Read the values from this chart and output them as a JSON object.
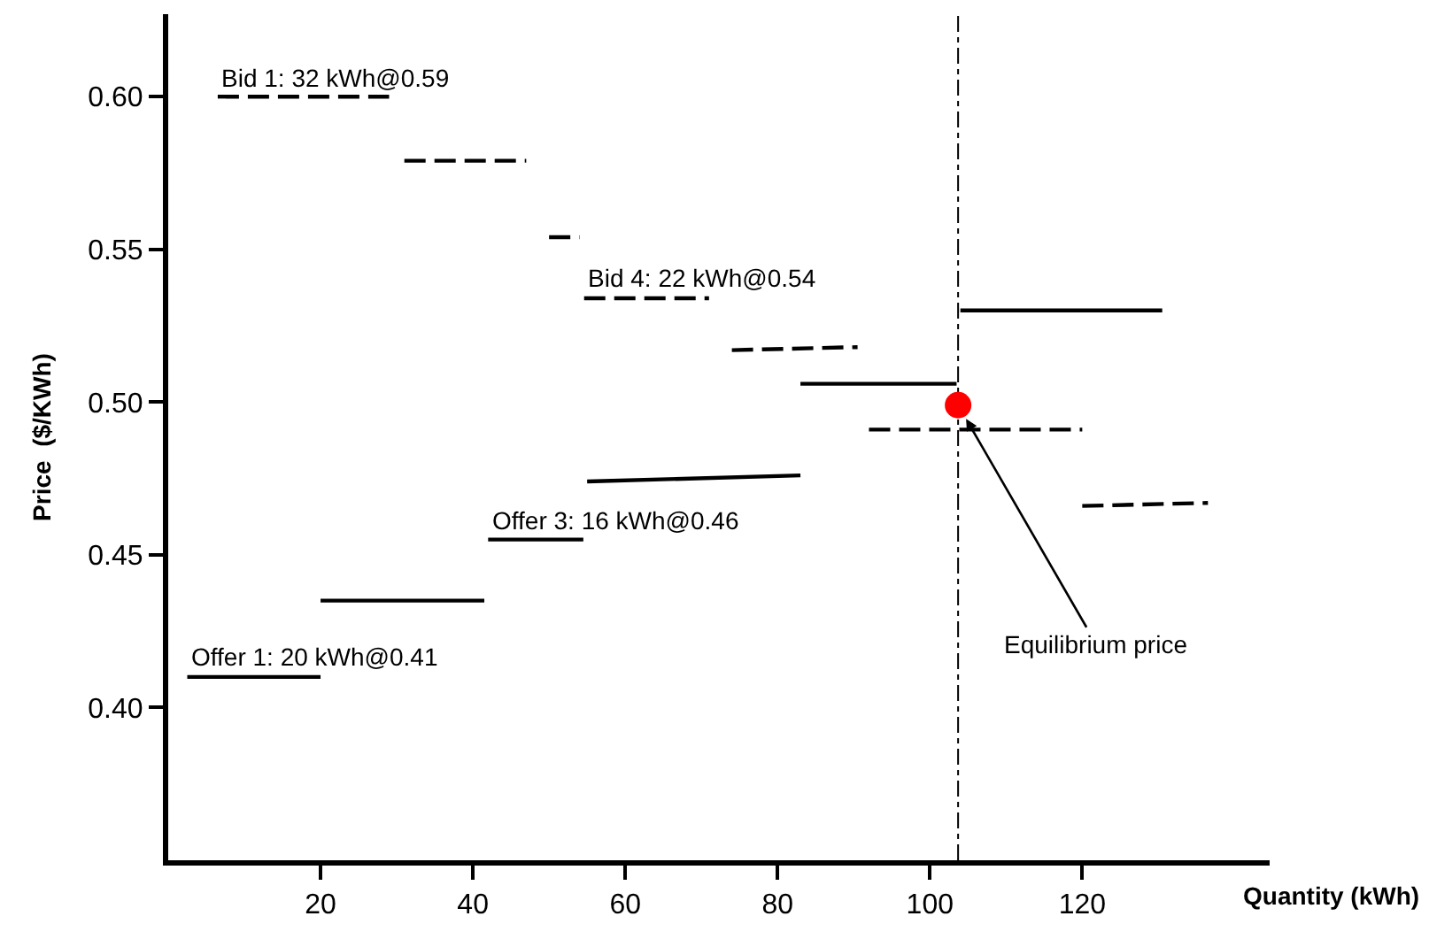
{
  "chart_data": {
    "type": "line",
    "xlabel": "Quantity (kWh)",
    "ylabel": "Price  ($/KWh)",
    "xlim": [
      0,
      144.6
    ],
    "ylim": [
      0.35,
      0.627
    ],
    "xticks": [
      20,
      40,
      60,
      80,
      100,
      120
    ],
    "yticks": [
      {
        "value": 0.4,
        "label": "0.40"
      },
      {
        "value": 0.45,
        "label": "0.45"
      },
      {
        "value": 0.5,
        "label": "0.50"
      },
      {
        "value": 0.55,
        "label": "0.55"
      },
      {
        "value": 0.6,
        "label": "0.60"
      }
    ],
    "grid": false,
    "marker": "none",
    "series": [
      {
        "color": "#000000",
        "line_style": "dashed",
        "x": [
          6.5,
          29,
          null,
          31,
          47,
          null,
          50,
          54,
          null,
          54.6,
          71,
          null,
          74,
          90.5,
          null,
          92,
          120,
          null,
          120,
          136.5
        ],
        "values": [
          0.6,
          0.6,
          null,
          0.579,
          0.579,
          null,
          0.554,
          0.554,
          null,
          0.534,
          0.534,
          null,
          0.517,
          0.518,
          null,
          0.491,
          0.491,
          null,
          0.466,
          0.467
        ]
      },
      {
        "color": "#000000",
        "line_style": "solid",
        "x": [
          2.5,
          20,
          null,
          20,
          41.5,
          null,
          42,
          54.5,
          null,
          55,
          83,
          null,
          83,
          103.5,
          null,
          104,
          130.5
        ],
        "values": [
          0.41,
          0.41,
          null,
          0.435,
          0.435,
          null,
          0.455,
          0.455,
          null,
          0.474,
          0.476,
          null,
          0.506,
          0.506,
          null,
          0.53,
          0.53
        ]
      },
      {
        "type": "scatter",
        "marker": "circle",
        "color": "#ff0000",
        "x": [
          103.7
        ],
        "values": [
          0.499
        ]
      }
    ],
    "ref_lines": [
      {
        "axis": "x",
        "value": 103.7,
        "line_style": "dotted",
        "color": "#000000"
      }
    ],
    "annotations": [
      {
        "text": "Bid 1: 32 kWh@0.59",
        "x": 6.5,
        "y": 0.6
      },
      {
        "text": "Bid 4: 22 kWh@0.54",
        "x": 54.6,
        "y": 0.534
      },
      {
        "text": "Offer 3: 16 kWh@0.46",
        "x": 42,
        "y": 0.455
      },
      {
        "text": "Offer 1: 20 kWh@0.41",
        "x": 2.5,
        "y": 0.41
      },
      {
        "text": "Equilibrium price",
        "x": 103.7,
        "y": 0.499
      }
    ]
  }
}
